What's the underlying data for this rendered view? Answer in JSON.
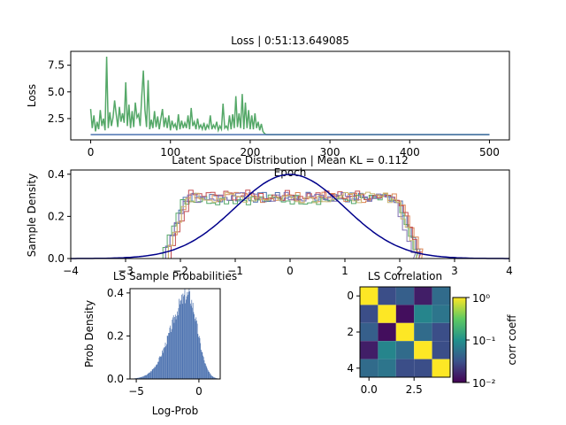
{
  "chart_data": [
    {
      "type": "line",
      "title": "Loss | 0:51:13.649085",
      "xlabel": "Epoch",
      "ylabel": "Loss",
      "xlim": [
        -25,
        525
      ],
      "ylim": [
        0.5,
        8.8
      ],
      "xticks": [
        "0",
        "100",
        "200",
        "300",
        "400",
        "500"
      ],
      "yticks": [
        "2.5",
        "5.0",
        "7.5"
      ],
      "series": [
        {
          "color": "#55a868",
          "x": [
            0,
            2,
            4,
            6,
            8,
            10,
            12,
            14,
            16,
            18,
            20,
            22,
            24,
            26,
            28,
            30,
            32,
            34,
            36,
            38,
            40,
            42,
            44,
            46,
            48,
            50,
            52,
            54,
            56,
            58,
            60,
            62,
            64,
            66,
            68,
            70,
            72,
            74,
            76,
            78,
            80,
            82,
            84,
            86,
            88,
            90,
            92,
            94,
            96,
            98,
            100,
            102,
            104,
            106,
            108,
            110,
            112,
            114,
            116,
            118,
            120,
            122,
            124,
            126,
            128,
            130,
            132,
            134,
            136,
            138,
            140,
            142,
            144,
            146,
            148,
            150,
            152,
            154,
            156,
            158,
            160,
            162,
            164,
            166,
            168,
            170,
            172,
            174,
            176,
            178,
            180,
            182,
            184,
            186,
            188,
            190,
            192,
            194,
            196,
            198,
            200,
            202,
            204,
            206,
            208,
            210,
            212,
            214,
            216,
            218,
            220,
            500
          ],
          "y": [
            3.4,
            1.6,
            2.8,
            1.3,
            2.2,
            1.5,
            3.3,
            1.8,
            2.5,
            1.4,
            8.3,
            1.6,
            3.1,
            1.8,
            2.6,
            4.2,
            2.9,
            1.7,
            3.6,
            2.2,
            3.0,
            2.1,
            5.9,
            1.8,
            3.8,
            1.6,
            3.2,
            1.7,
            4.0,
            2.6,
            2.9,
            1.8,
            4.6,
            7.0,
            3.3,
            1.7,
            6.1,
            1.5,
            2.4,
            1.6,
            3.2,
            1.7,
            2.7,
            1.5,
            2.5,
            3.4,
            1.7,
            2.6,
            1.6,
            2.8,
            1.4,
            2.3,
            1.7,
            2.0,
            1.4,
            2.9,
            1.5,
            2.3,
            1.6,
            2.1,
            1.6,
            2.8,
            1.5,
            3.5,
            1.8,
            2.2,
            1.5,
            2.5,
            1.6,
            1.9,
            1.5,
            2.1,
            1.4,
            1.9,
            1.6,
            2.8,
            1.5,
            1.9,
            1.6,
            2.2,
            1.4,
            1.8,
            1.5,
            3.9,
            1.6,
            1.8,
            1.5,
            2.8,
            1.5,
            2.9,
            1.6,
            4.6,
            1.7,
            3.0,
            1.6,
            4.8,
            1.5,
            4.0,
            1.6,
            3.3,
            1.5,
            2.8,
            1.5,
            3.0,
            1.6,
            2.2,
            1.4,
            2.0,
            1.3,
            1.1,
            1.0,
            1.0
          ]
        },
        {
          "color": "#4c72b0",
          "x": [
            0,
            500
          ],
          "y": [
            1.0,
            1.0
          ]
        }
      ]
    },
    {
      "type": "line",
      "title": "Latent Space Distribution | Mean KL = 0.112",
      "xlabel": "",
      "ylabel": "Sample Density",
      "xlim": [
        -4,
        4
      ],
      "ylim": [
        0,
        0.42
      ],
      "xticks": [
        "−4",
        "−3",
        "−2",
        "−1",
        "0",
        "1",
        "2",
        "3",
        "4"
      ],
      "yticks": [
        "0.0",
        "0.2",
        "0.4"
      ],
      "reference_curve": {
        "type": "normal",
        "mean": 0,
        "std": 1,
        "color": "#00008b"
      },
      "histograms": [
        {
          "color": "#4c72b0",
          "range": [
            -2.1,
            2.1
          ],
          "level": 0.29
        },
        {
          "color": "#dd8452",
          "range": [
            -2.05,
            2.15
          ],
          "level": 0.29
        },
        {
          "color": "#55a868",
          "range": [
            -2.15,
            2.05
          ],
          "level": 0.28
        },
        {
          "color": "#c44e52",
          "range": [
            -2.0,
            2.1
          ],
          "level": 0.3
        },
        {
          "color": "#8172b3",
          "range": [
            -2.1,
            2.0
          ],
          "level": 0.29
        },
        {
          "color": "#ccb974",
          "range": [
            -2.05,
            2.05
          ],
          "level": 0.29
        }
      ]
    },
    {
      "type": "bar",
      "title": "LS Sample Probabilities",
      "xlabel": "Log-Prob",
      "ylabel": "Prob Density",
      "xlim": [
        -5.5,
        1.7
      ],
      "ylim": [
        0,
        0.42
      ],
      "xticks": [
        "−5",
        "0"
      ],
      "yticks": [
        "0.0",
        "0.2",
        "0.4"
      ],
      "color": "#4c72b0",
      "mode": -0.9,
      "spread_left": 1.35,
      "spread_right": 0.75,
      "peak": 0.39
    },
    {
      "type": "heatmap",
      "title": "LS Correlation",
      "xticks": [
        "0.0",
        "2.5"
      ],
      "yticks": [
        "0",
        "2",
        "4"
      ],
      "colorbar_label": "corr coeff",
      "colorbar_ticks": [
        "10⁰",
        "10⁻¹",
        "10⁻²"
      ],
      "scale": "log",
      "range": [
        0.01,
        1
      ],
      "matrix": [
        [
          1.0,
          0.03,
          0.04,
          0.015,
          0.05
        ],
        [
          0.03,
          1.0,
          0.012,
          0.08,
          0.06
        ],
        [
          0.04,
          0.012,
          1.0,
          0.05,
          0.03
        ],
        [
          0.015,
          0.08,
          0.05,
          1.0,
          0.03
        ],
        [
          0.05,
          0.06,
          0.03,
          0.03,
          1.0
        ]
      ]
    }
  ]
}
